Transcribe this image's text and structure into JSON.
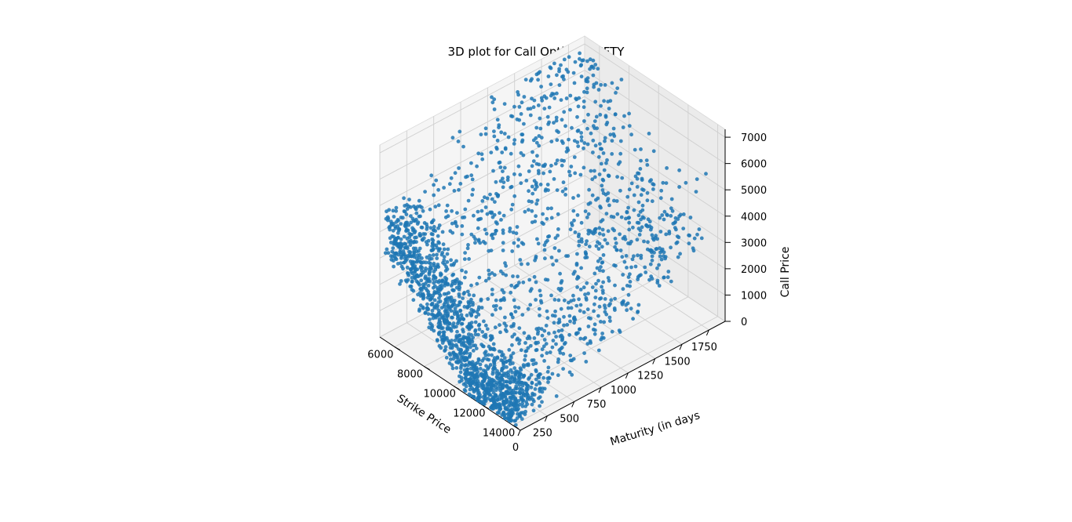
{
  "chart_data": {
    "type": "scatter3d",
    "title": "3D plot for Call Option - NIFTY",
    "xlabel": "Strike Price",
    "ylabel": "Maturity (in days",
    "zlabel": "Call Price",
    "x_ticks": [
      "6000",
      "8000",
      "10000",
      "12000",
      "14000"
    ],
    "y_ticks": [
      "0",
      "250",
      "500",
      "750",
      "1000",
      "1250",
      "1500",
      "1750"
    ],
    "z_ticks": [
      "0",
      "1000",
      "2000",
      "3000",
      "4000",
      "5000",
      "6000",
      "7000"
    ],
    "xlim": [
      5000,
      14500
    ],
    "ylim": [
      0,
      1900
    ],
    "zlim": [
      0,
      7300
    ],
    "marker_color": "#1f77b4",
    "grid": true,
    "series": [
      {
        "points_approx": "Call prices decline with strike price and increase with maturity; dense bands of points at short maturities across strikes 6000-14000, sparser cloud at long maturities up to ~1800 days with prices up to ~7000."
      }
    ]
  }
}
